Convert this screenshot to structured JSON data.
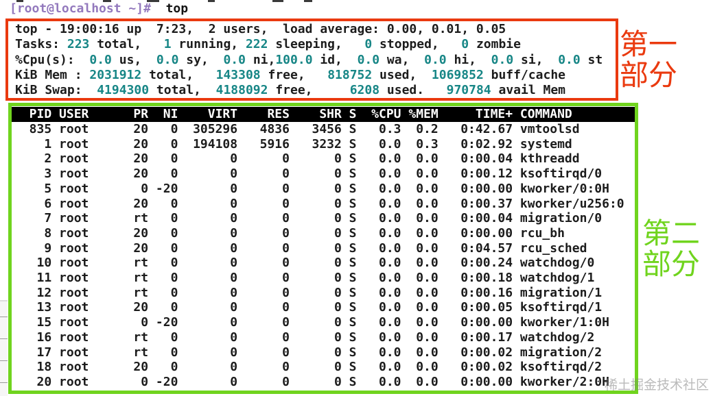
{
  "colors": {
    "box_red": "#ea3a0f",
    "box_green": "#70d41e",
    "value_teal": "#178686",
    "prompt_purple": "#9379bd",
    "header_bar_bg": "#000000",
    "header_bar_fg": "#ffffff"
  },
  "terminal": {
    "prompt": "[root@localhost ~]# ",
    "command": " top"
  },
  "summary": {
    "lines": [
      {
        "segments": [
          {
            "t": "top - 19:00:16 up  7:23,  2 users,  load average: 0.00, 0.01, 0.05",
            "c": "fg"
          }
        ]
      },
      {
        "segments": [
          {
            "t": "Tasks: ",
            "c": "fg"
          },
          {
            "t": "223",
            "c": "num"
          },
          {
            "t": " total,   ",
            "c": "fg"
          },
          {
            "t": "1",
            "c": "num"
          },
          {
            "t": " running, ",
            "c": "fg"
          },
          {
            "t": "222",
            "c": "num"
          },
          {
            "t": " sleeping,   ",
            "c": "fg"
          },
          {
            "t": "0",
            "c": "num"
          },
          {
            "t": " stopped,   ",
            "c": "fg"
          },
          {
            "t": "0",
            "c": "num"
          },
          {
            "t": " zombie",
            "c": "fg"
          }
        ]
      },
      {
        "segments": [
          {
            "t": "%Cpu(s):  ",
            "c": "fg"
          },
          {
            "t": "0.0",
            "c": "num"
          },
          {
            "t": " us,  ",
            "c": "fg"
          },
          {
            "t": "0.0",
            "c": "num"
          },
          {
            "t": " sy,  ",
            "c": "fg"
          },
          {
            "t": "0.0",
            "c": "num"
          },
          {
            "t": " ni,",
            "c": "fg"
          },
          {
            "t": "100.0",
            "c": "num"
          },
          {
            "t": " id,  ",
            "c": "fg"
          },
          {
            "t": "0.0",
            "c": "num"
          },
          {
            "t": " wa,  ",
            "c": "fg"
          },
          {
            "t": "0.0",
            "c": "num"
          },
          {
            "t": " hi,  ",
            "c": "fg"
          },
          {
            "t": "0.0",
            "c": "num"
          },
          {
            "t": " si,  ",
            "c": "fg"
          },
          {
            "t": "0.0",
            "c": "num"
          },
          {
            "t": " st",
            "c": "fg"
          }
        ]
      },
      {
        "segments": [
          {
            "t": "KiB Mem : ",
            "c": "fg"
          },
          {
            "t": "2031912",
            "c": "num"
          },
          {
            "t": " total,   ",
            "c": "fg"
          },
          {
            "t": "143308",
            "c": "num"
          },
          {
            "t": " free,   ",
            "c": "fg"
          },
          {
            "t": "818752",
            "c": "num"
          },
          {
            "t": " used,  ",
            "c": "fg"
          },
          {
            "t": "1069852",
            "c": "num"
          },
          {
            "t": " buff/cache",
            "c": "fg"
          }
        ]
      },
      {
        "segments": [
          {
            "t": "KiB Swap:  ",
            "c": "fg"
          },
          {
            "t": "4194300",
            "c": "num"
          },
          {
            "t": " total,  ",
            "c": "fg"
          },
          {
            "t": "4188092",
            "c": "num"
          },
          {
            "t": " free,     ",
            "c": "fg"
          },
          {
            "t": "6208",
            "c": "num"
          },
          {
            "t": " used.   ",
            "c": "fg"
          },
          {
            "t": "970784",
            "c": "num"
          },
          {
            "t": " avail Mem",
            "c": "fg"
          }
        ]
      }
    ]
  },
  "table": {
    "columns": [
      "PID",
      "USER",
      "PR",
      "NI",
      "VIRT",
      "RES",
      "SHR",
      "S",
      "%CPU",
      "%MEM",
      "TIME+",
      "COMMAND"
    ],
    "rows": [
      [
        "835",
        "root",
        "20",
        "0",
        "305296",
        "4836",
        "3456",
        "S",
        "0.3",
        "0.2",
        "0:42.67",
        "vmtoolsd"
      ],
      [
        "1",
        "root",
        "20",
        "0",
        "194108",
        "5916",
        "3232",
        "S",
        "0.0",
        "0.3",
        "0:02.92",
        "systemd"
      ],
      [
        "2",
        "root",
        "20",
        "0",
        "0",
        "0",
        "0",
        "S",
        "0.0",
        "0.0",
        "0:00.04",
        "kthreadd"
      ],
      [
        "3",
        "root",
        "20",
        "0",
        "0",
        "0",
        "0",
        "S",
        "0.0",
        "0.0",
        "0:00.12",
        "ksoftirqd/0"
      ],
      [
        "5",
        "root",
        "0",
        "-20",
        "0",
        "0",
        "0",
        "S",
        "0.0",
        "0.0",
        "0:00.00",
        "kworker/0:0H"
      ],
      [
        "6",
        "root",
        "20",
        "0",
        "0",
        "0",
        "0",
        "S",
        "0.0",
        "0.0",
        "0:00.37",
        "kworker/u256:0"
      ],
      [
        "7",
        "root",
        "rt",
        "0",
        "0",
        "0",
        "0",
        "S",
        "0.0",
        "0.0",
        "0:00.04",
        "migration/0"
      ],
      [
        "8",
        "root",
        "20",
        "0",
        "0",
        "0",
        "0",
        "S",
        "0.0",
        "0.0",
        "0:00.00",
        "rcu_bh"
      ],
      [
        "9",
        "root",
        "20",
        "0",
        "0",
        "0",
        "0",
        "S",
        "0.0",
        "0.0",
        "0:04.57",
        "rcu_sched"
      ],
      [
        "10",
        "root",
        "rt",
        "0",
        "0",
        "0",
        "0",
        "S",
        "0.0",
        "0.0",
        "0:00.24",
        "watchdog/0"
      ],
      [
        "11",
        "root",
        "rt",
        "0",
        "0",
        "0",
        "0",
        "S",
        "0.0",
        "0.0",
        "0:00.18",
        "watchdog/1"
      ],
      [
        "12",
        "root",
        "rt",
        "0",
        "0",
        "0",
        "0",
        "S",
        "0.0",
        "0.0",
        "0:00.16",
        "migration/1"
      ],
      [
        "13",
        "root",
        "20",
        "0",
        "0",
        "0",
        "0",
        "S",
        "0.0",
        "0.0",
        "0:00.05",
        "ksoftirqd/1"
      ],
      [
        "15",
        "root",
        "0",
        "-20",
        "0",
        "0",
        "0",
        "S",
        "0.0",
        "0.0",
        "0:00.00",
        "kworker/1:0H"
      ],
      [
        "16",
        "root",
        "rt",
        "0",
        "0",
        "0",
        "0",
        "S",
        "0.0",
        "0.0",
        "0:00.17",
        "watchdog/2"
      ],
      [
        "17",
        "root",
        "rt",
        "0",
        "0",
        "0",
        "0",
        "S",
        "0.0",
        "0.0",
        "0:00.02",
        "migration/2"
      ],
      [
        "18",
        "root",
        "20",
        "0",
        "0",
        "0",
        "0",
        "S",
        "0.0",
        "0.0",
        "0:00.02",
        "ksoftirqd/2"
      ],
      [
        "20",
        "root",
        "0",
        "-20",
        "0",
        "0",
        "0",
        "S",
        "0.0",
        "0.0",
        "0:00.00",
        "kworker/2:0H"
      ]
    ]
  },
  "annotations": {
    "part1": "第一部分",
    "part2": "第二部分"
  },
  "watermark": "稀土掘金技术社区"
}
